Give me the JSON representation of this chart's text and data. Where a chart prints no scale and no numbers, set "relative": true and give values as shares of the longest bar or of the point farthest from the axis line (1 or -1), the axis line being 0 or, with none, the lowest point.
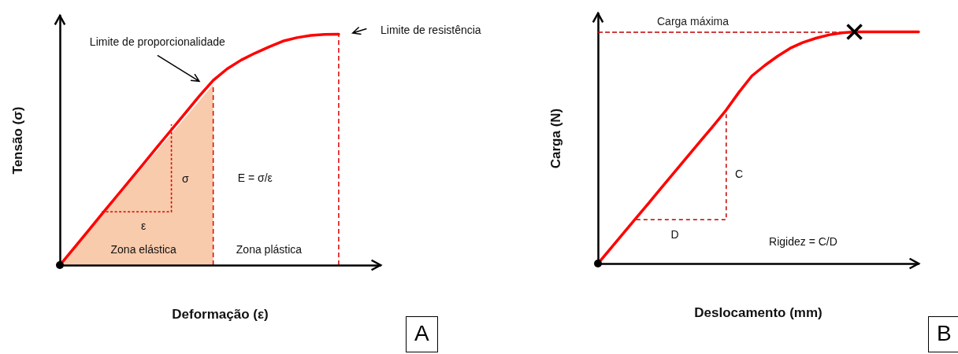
{
  "chart_data": [
    {
      "type": "line",
      "relative": true,
      "xlabel": "Deformação (ε)",
      "ylabel": "Tensão (σ)",
      "grid": false,
      "categories": [
        null,
        null,
        null,
        null,
        null,
        null,
        null,
        null,
        null,
        null,
        null,
        null,
        null,
        null,
        null,
        null,
        null,
        null,
        null,
        null,
        null,
        null,
        null,
        null
      ],
      "series": [
        {
          "color": "#ff0000",
          "line_style": "solid",
          "values": [
            0,
            0.073,
            0.146,
            0.22,
            0.293,
            0.366,
            0.439,
            0.513,
            0.586,
            0.659,
            0.732,
            0.8,
            0.85,
            0.888,
            0.918,
            0.945,
            0.97,
            0.985,
            0.995,
            0.999,
            1.0,
            null,
            null,
            null
          ]
        }
      ],
      "annotations": [
        "Limite de proporcionalidade",
        "Limite de resistência",
        "σ",
        "ε",
        "E = σ/ε",
        "Zona elástica",
        "Zona plástica",
        "A"
      ]
    },
    {
      "type": "line",
      "relative": true,
      "xlabel": "Deslocamento (mm)",
      "ylabel": "Carga (N)",
      "grid": false,
      "categories": [
        null,
        null,
        null,
        null,
        null,
        null,
        null,
        null,
        null,
        null,
        null,
        null,
        null,
        null,
        null,
        null,
        null,
        null,
        null,
        null,
        null,
        null,
        null,
        null,
        null,
        null
      ],
      "series": [
        {
          "color": "#ff0000",
          "line_style": "solid",
          "values": [
            0,
            0.066,
            0.132,
            0.198,
            0.264,
            0.331,
            0.397,
            0.463,
            0.529,
            0.595,
            0.663,
            0.74,
            0.81,
            0.855,
            0.895,
            0.93,
            0.955,
            0.973,
            0.987,
            0.996,
            1.0,
            1.0,
            1.0,
            1.0,
            1.0,
            1.0
          ]
        }
      ],
      "ref_lines": [
        {
          "axis": "y",
          "value": 1.0,
          "label": "Carga máxima",
          "color": "#c00000",
          "line_style": "dashed"
        }
      ],
      "annotations": [
        "C",
        "D",
        "Rigidez = C/D",
        "B"
      ]
    }
  ]
}
